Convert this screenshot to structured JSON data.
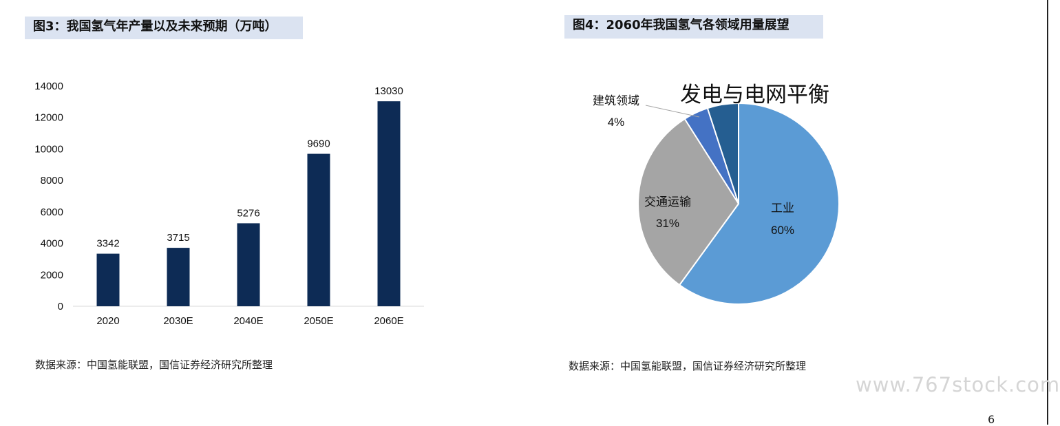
{
  "left_panel": {
    "title": "图3：我国氢气年产量以及未来预期（万吨）",
    "source": "数据来源：中国氢能联盟，国信证券经济研究所整理"
  },
  "right_panel": {
    "title": "图4：2060年我国氢气各领域用量展望",
    "source": "数据来源：中国氢能联盟，国信证券经济研究所整理"
  },
  "watermark": "www.767stock.com",
  "page_number": "6",
  "chart_data": [
    {
      "type": "bar",
      "categories": [
        "2020",
        "2030E",
        "2040E",
        "2050E",
        "2060E"
      ],
      "values": [
        3342,
        3715,
        5276,
        9690,
        13030
      ],
      "ylim": [
        0,
        14000
      ],
      "yticks": [
        0,
        2000,
        4000,
        6000,
        8000,
        10000,
        12000,
        14000
      ],
      "grid": false,
      "color": "#0d2b55"
    },
    {
      "type": "pie",
      "title": "发电与电网平衡",
      "slices": [
        {
          "name": "工业",
          "value": 60,
          "label": "60%",
          "color": "#5b9bd5"
        },
        {
          "name": "交通运输",
          "value": 31,
          "label": "31%",
          "color": "#a5a5a5"
        },
        {
          "name": "建筑领域",
          "value": 4,
          "label": "4%",
          "color": "#4472c4"
        },
        {
          "name": "发电与电网平衡",
          "value": 5,
          "label": "",
          "color": "#255e91"
        }
      ]
    }
  ]
}
